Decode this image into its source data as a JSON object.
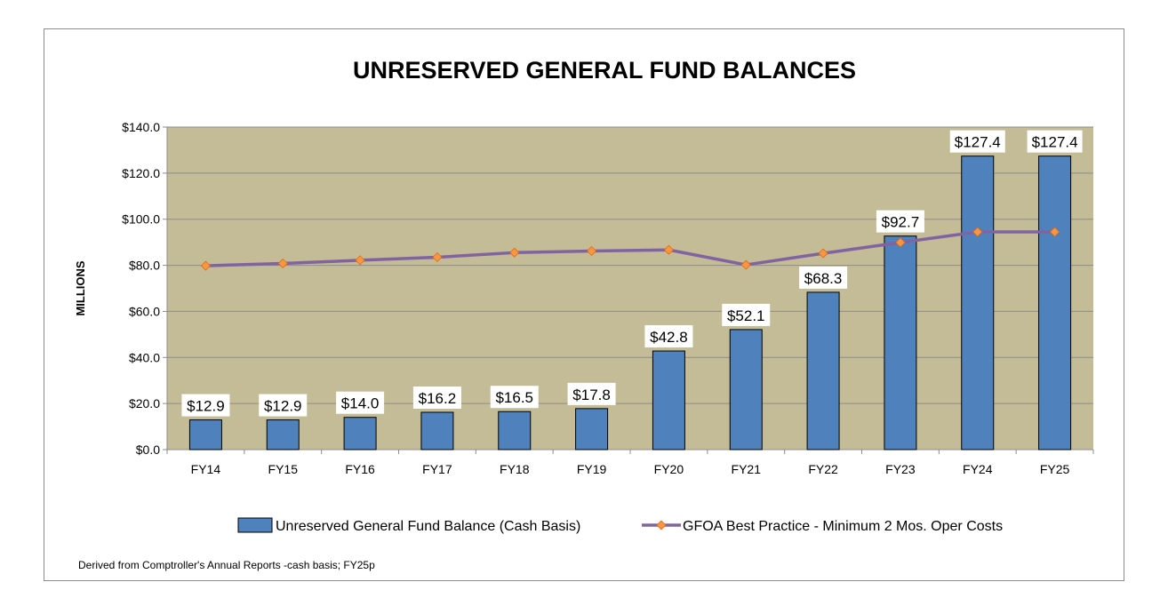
{
  "chart_data": {
    "type": "bar",
    "title": "UNRESERVED GENERAL FUND BALANCES",
    "ylabel": "MILLIONS",
    "xlabel": "",
    "categories": [
      "FY14",
      "FY15",
      "FY16",
      "FY17",
      "FY18",
      "FY19",
      "FY20",
      "FY21",
      "FY22",
      "FY23",
      "FY24",
      "FY25"
    ],
    "ylim": [
      0,
      140
    ],
    "yticks": [
      0,
      20,
      40,
      60,
      80,
      100,
      120,
      140
    ],
    "ytick_labels": [
      "$0.0",
      "$20.0",
      "$40.0",
      "$60.0",
      "$80.0",
      "$100.0",
      "$120.0",
      "$140.0"
    ],
    "grid": true,
    "legend_position": "bottom",
    "series": [
      {
        "name": "Unreserved General Fund Balance (Cash Basis)",
        "kind": "bar",
        "color": "#4f81bd",
        "values": [
          12.9,
          12.9,
          14.0,
          16.2,
          16.5,
          17.8,
          42.8,
          52.1,
          68.3,
          92.7,
          127.4,
          127.4
        ],
        "labels": [
          "$12.9",
          "$12.9",
          "$14.0",
          "$16.2",
          "$16.5",
          "$17.8",
          "$42.8",
          "$52.1",
          "$68.3",
          "$92.7",
          "$127.4",
          "$127.4"
        ]
      },
      {
        "name": "GFOA Best Practice - Minimum 2 Mos. Oper Costs",
        "kind": "line",
        "color": "#8064a2",
        "marker_color": "#f79646",
        "values": [
          79.8,
          80.8,
          82.2,
          83.5,
          85.5,
          86.2,
          86.7,
          80.2,
          85.2,
          89.9,
          94.5,
          94.5
        ]
      }
    ],
    "plot_background": "#c4bc96",
    "annotation": "Derived from Comptroller's Annual Reports -cash basis; FY25p"
  }
}
